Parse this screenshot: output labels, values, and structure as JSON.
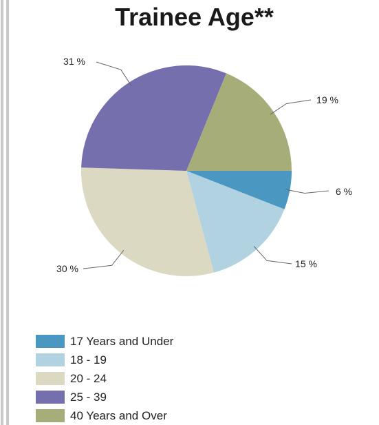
{
  "chart_data": {
    "type": "pie",
    "title": "Trainee Age**",
    "slices": [
      {
        "label": "17 Years and Under",
        "value": 6,
        "display": "6 %",
        "color": "#4a97c1"
      },
      {
        "label": "18 - 19",
        "value": 15,
        "display": "15 %",
        "color": "#b0d2e1"
      },
      {
        "label": "20 - 24",
        "value": 30,
        "display": "30 %",
        "color": "#dcd9c3"
      },
      {
        "label": "25 - 39",
        "value": 31,
        "display": "31 %",
        "color": "#756fae"
      },
      {
        "label": "40 Years and Over",
        "value": 19,
        "display": "19 %",
        "color": "#a7ad79"
      }
    ],
    "legend_position": "bottom-left"
  }
}
